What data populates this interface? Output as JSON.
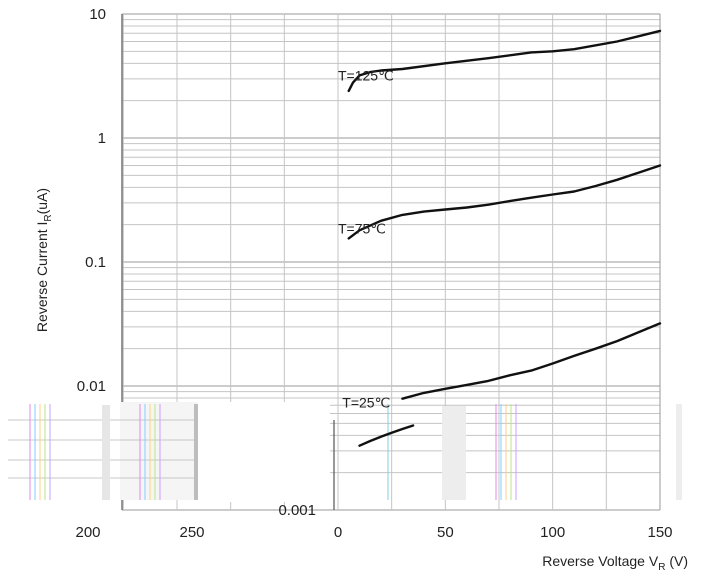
{
  "chart_data": {
    "type": "line",
    "title": "",
    "yscale": "log",
    "ylim": [
      0.001,
      10
    ],
    "xlim": [
      0,
      150
    ],
    "grid": true,
    "xlabel_main": "Reverse Voltage V",
    "xlabel_sub": "R",
    "xlabel_unit": " (V)",
    "ylabel_main": "Reverse Current I",
    "ylabel_sub": "R",
    "ylabel_unit": "(uA)",
    "yticks": [
      {
        "value": 10,
        "label": "10"
      },
      {
        "value": 1,
        "label": "1"
      },
      {
        "value": 0.1,
        "label": "0.1"
      },
      {
        "value": 0.01,
        "label": "0.01"
      },
      {
        "value": 0.001,
        "label": "0.001"
      }
    ],
    "xticks": [
      {
        "value": 0,
        "label": "0"
      },
      {
        "value": 50,
        "label": "50"
      },
      {
        "value": 100,
        "label": "100"
      },
      {
        "value": 150,
        "label": "150"
      }
    ],
    "stray_xticks": [
      "200",
      "250"
    ],
    "series": [
      {
        "name": "T=125℃",
        "x": [
          5,
          7,
          10,
          15,
          20,
          30,
          50,
          70,
          90,
          100,
          110,
          130,
          150
        ],
        "y": [
          2.4,
          2.8,
          3.2,
          3.4,
          3.5,
          3.6,
          4.0,
          4.4,
          4.9,
          5.0,
          5.2,
          6.0,
          7.3
        ]
      },
      {
        "name": "T=75℃",
        "x": [
          5,
          10,
          20,
          30,
          40,
          50,
          60,
          70,
          80,
          90,
          100,
          110,
          120,
          130,
          150
        ],
        "y": [
          0.155,
          0.18,
          0.215,
          0.24,
          0.255,
          0.265,
          0.275,
          0.29,
          0.31,
          0.33,
          0.35,
          0.37,
          0.41,
          0.46,
          0.6
        ]
      },
      {
        "name": "T=25℃",
        "x": [
          30,
          40,
          50,
          60,
          70,
          80,
          90,
          100,
          110,
          120,
          130,
          150
        ],
        "y": [
          0.0079,
          0.0088,
          0.0095,
          0.0102,
          0.011,
          0.0122,
          0.0133,
          0.0152,
          0.0175,
          0.02,
          0.023,
          0.032
        ]
      },
      {
        "name": "",
        "x": [
          10,
          15,
          20,
          25,
          30,
          35
        ],
        "y": [
          0.0033,
          0.0036,
          0.0039,
          0.0042,
          0.0045,
          0.0048
        ]
      }
    ],
    "annotations": [
      {
        "text": "T=125℃",
        "x": 0,
        "y": 2.9
      },
      {
        "text": "T=75℃",
        "x": 0,
        "y": 0.17
      },
      {
        "text": "T=25℃",
        "x": 2,
        "y": 0.0067
      }
    ]
  }
}
